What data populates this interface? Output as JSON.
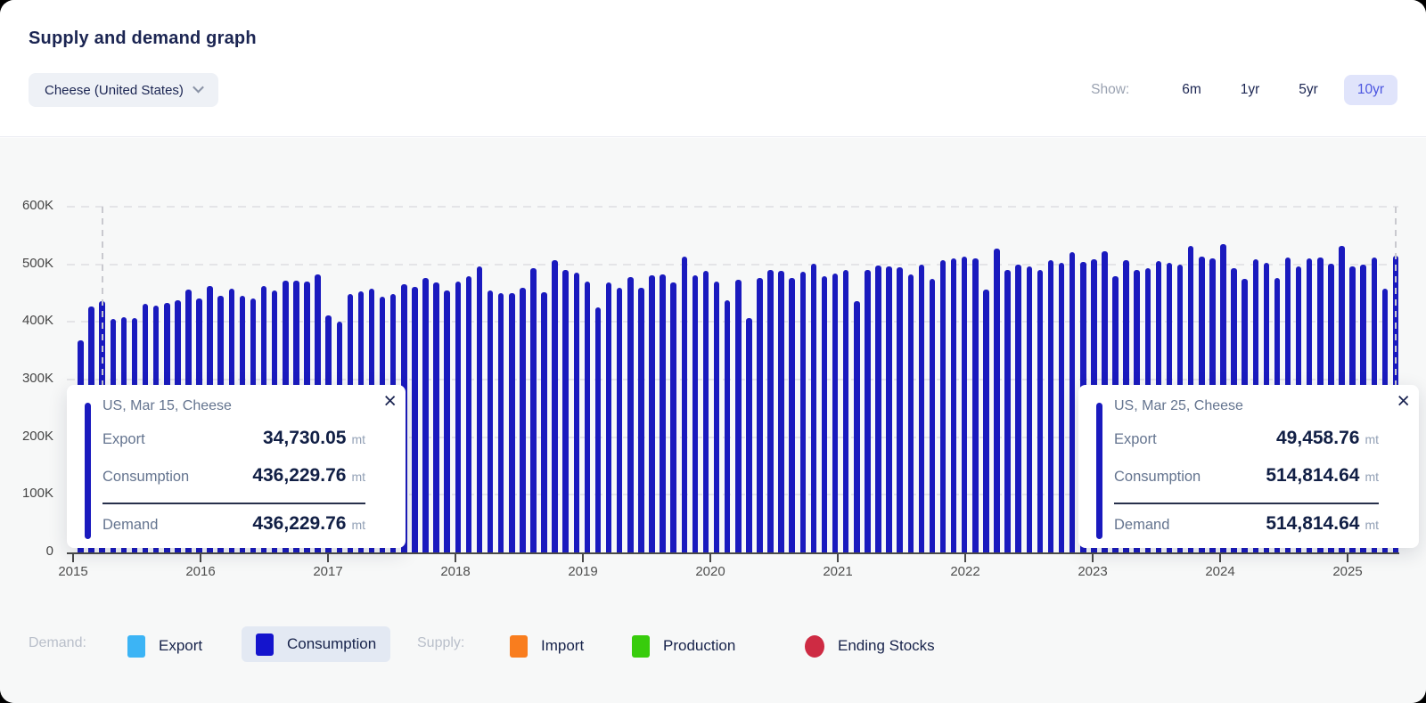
{
  "header": {
    "title": "Supply and demand graph",
    "commodity_selector": {
      "value": "Cheese (United States)"
    },
    "show": {
      "label": "Show:",
      "options": [
        "6m",
        "1yr",
        "5yr",
        "10yr"
      ],
      "selected": "10yr"
    }
  },
  "chart_data": {
    "type": "bar",
    "title": "Supply and demand graph",
    "unit": "mt",
    "frequency": "monthly",
    "x_start": "Jan 2015",
    "x_end": "Mar 2025",
    "x_tick_labels": [
      "2015",
      "2016",
      "2017",
      "2018",
      "2019",
      "2020",
      "2021",
      "2022",
      "2023",
      "2024",
      "2025"
    ],
    "y_tick_labels": [
      "0",
      "100K",
      "200K",
      "300K",
      "400K",
      "500K",
      "600K"
    ],
    "ylim": [
      0,
      600000
    ],
    "grid": "dashed-horizontal",
    "series": [
      {
        "name": "Consumption",
        "color": "#1a1abe",
        "values": [
          368000,
          427000,
          436229.76,
          405000,
          409000,
          407000,
          432000,
          428000,
          433000,
          438000,
          456000,
          441000,
          462000,
          445000,
          458000,
          446000,
          440000,
          463000,
          455000,
          472000,
          472000,
          470000,
          483000,
          412000,
          400000,
          448000,
          453000,
          457000,
          444000,
          448000,
          466000,
          461000,
          476000,
          468000,
          455000,
          470000,
          480000,
          496000,
          455000,
          450000,
          450000,
          460000,
          493000,
          451000,
          508000,
          490000,
          485000,
          470000,
          426000,
          468000,
          459000,
          478000,
          460000,
          481000,
          482000,
          468000,
          513000,
          481000,
          488000,
          470000,
          437000,
          473000,
          406000,
          476000,
          490000,
          488000,
          476000,
          487000,
          501000,
          479000,
          484000,
          491000,
          436000,
          490000,
          498000,
          496000,
          495000,
          482000,
          500000,
          474000,
          507000,
          510000,
          513000,
          510000,
          456000,
          527000,
          491000,
          499000,
          496000,
          491000,
          507000,
          502000,
          521000,
          504000,
          509000,
          522000,
          479000,
          507000,
          491000,
          494000,
          505000,
          502000,
          500000,
          532000,
          513000,
          510000,
          535000,
          493000,
          475000,
          509000,
          502000,
          476000,
          512000,
          497000,
          510000,
          512000,
          501000,
          532000,
          496000,
          500000,
          512000,
          458000,
          514814.64
        ]
      }
    ]
  },
  "tooltips": [
    {
      "title": "US, Mar 15, Cheese",
      "anchor_index": 2,
      "rows": [
        {
          "label": "Export",
          "value": "34,730.05",
          "unit": "mt"
        },
        {
          "label": "Consumption",
          "value": "436,229.76",
          "unit": "mt"
        }
      ],
      "total": {
        "label": "Demand",
        "value": "436,229.76",
        "unit": "mt"
      }
    },
    {
      "title": "US, Mar 25, Cheese",
      "anchor_index": 122,
      "rows": [
        {
          "label": "Export",
          "value": "49,458.76",
          "unit": "mt"
        },
        {
          "label": "Consumption",
          "value": "514,814.64",
          "unit": "mt"
        }
      ],
      "total": {
        "label": "Demand",
        "value": "514,814.64",
        "unit": "mt"
      }
    }
  ],
  "legend": {
    "groups": [
      {
        "label": "Demand:",
        "items": [
          {
            "name": "Export",
            "color": "#3cb4f5",
            "shape": "square",
            "selected": false
          },
          {
            "name": "Consumption",
            "color": "#1414cd",
            "shape": "square",
            "selected": true
          }
        ]
      },
      {
        "label": "Supply:",
        "items": [
          {
            "name": "Import",
            "color": "#f97d1e",
            "shape": "square",
            "selected": false
          },
          {
            "name": "Production",
            "color": "#38cc0c",
            "shape": "square",
            "selected": false
          },
          {
            "name": "Ending Stocks",
            "color": "#ce2b43",
            "shape": "circle",
            "selected": false
          }
        ]
      }
    ]
  },
  "icons": {
    "close": "×"
  }
}
